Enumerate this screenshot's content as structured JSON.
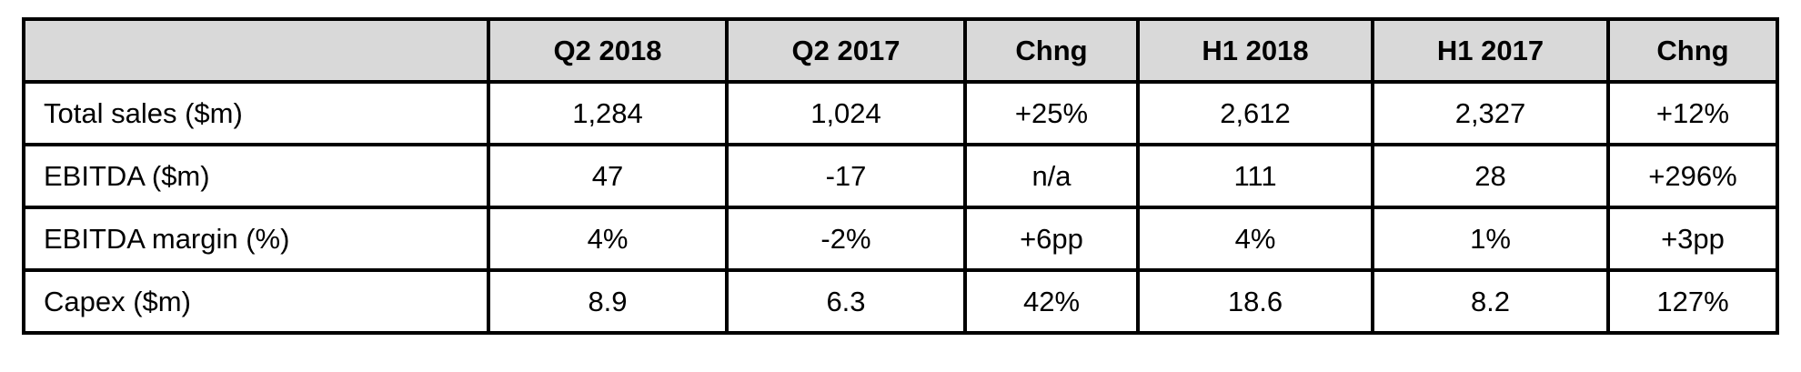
{
  "table": {
    "headers": [
      "",
      "Q2 2018",
      "Q2 2017",
      "Chng",
      "H1 2018",
      "H1 2017",
      "Chng"
    ],
    "rows": [
      [
        "Total sales ($m)",
        "1,284",
        "1,024",
        "+25%",
        "2,612",
        "2,327",
        "+12%"
      ],
      [
        "EBITDA ($m)",
        "47",
        "-17",
        "n/a",
        "111",
        "28",
        "+296%"
      ],
      [
        "EBITDA margin (%)",
        "4%",
        "-2%",
        "+6pp",
        "4%",
        "1%",
        "+3pp"
      ],
      [
        "Capex ($m)",
        "8.9",
        "6.3",
        "42%",
        "18.6",
        "8.2",
        "127%"
      ]
    ]
  },
  "colors": {
    "header_background": "#d9d9d9",
    "border": "#000000",
    "text": "#000000"
  }
}
